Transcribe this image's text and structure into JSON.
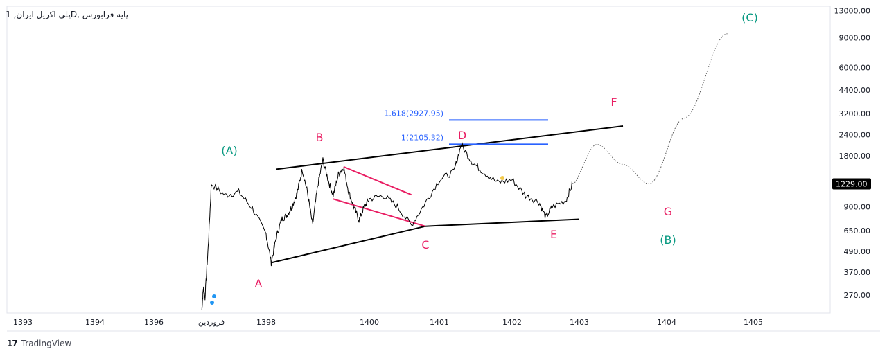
{
  "header": {
    "symbol_title": "پایه فرابورس ,Dپلی اکریل ایران, 1"
  },
  "footer": {
    "brand": "TradingView",
    "logo_icon": "tradingview-logo-icon"
  },
  "colors": {
    "price_line": "#000000",
    "wave_label_pink": "#e91e63",
    "wave_label_green": "#089981",
    "fib_line": "#2962ff",
    "trendline": "#000000",
    "pink_trendline": "#e91e63",
    "last_price_label_bg": "#000000",
    "marker_blue": "#2196f3",
    "marker_yellow": "#f2c94c"
  },
  "chart_data": {
    "type": "line",
    "scale": "log",
    "x_axis_ticks": [
      "1393",
      "1394",
      "1396",
      "فروردین",
      "1398",
      "1400",
      "1401",
      "1402",
      "1403",
      "1404",
      "1405"
    ],
    "y_axis_ticks": [
      13000,
      9000,
      6000,
      4400,
      3200,
      2400,
      1800,
      1229,
      900,
      650,
      490,
      370,
      270
    ],
    "y_axis_tick_labels": [
      "13000.00",
      "9000.00",
      "6000.00",
      "4400.00",
      "3200.00",
      "2400.00",
      "1800.00",
      "900.00",
      "650.00",
      "490.00",
      "370.00",
      "270.00"
    ],
    "last_price": 1229,
    "last_price_label": "1229.00",
    "price_series": [
      {
        "x": 1397.5,
        "y": 220
      },
      {
        "x": 1397.55,
        "y": 300
      },
      {
        "x": 1397.6,
        "y": 260
      },
      {
        "x": 1397.7,
        "y": 520
      },
      {
        "x": 1397.8,
        "y": 1230
      },
      {
        "x": 1397.85,
        "y": 1050
      },
      {
        "x": 1397.9,
        "y": 1100
      },
      {
        "x": 1397.95,
        "y": 880
      },
      {
        "x": 1398.0,
        "y": 620
      },
      {
        "x": 1398.1,
        "y": 420
      },
      {
        "x": 1398.2,
        "y": 600
      },
      {
        "x": 1398.3,
        "y": 760
      },
      {
        "x": 1398.4,
        "y": 800
      },
      {
        "x": 1398.5,
        "y": 900
      },
      {
        "x": 1398.6,
        "y": 1080
      },
      {
        "x": 1398.7,
        "y": 1500
      },
      {
        "x": 1398.8,
        "y": 1100
      },
      {
        "x": 1398.9,
        "y": 700
      },
      {
        "x": 1399.0,
        "y": 1200
      },
      {
        "x": 1399.1,
        "y": 1700
      },
      {
        "x": 1399.2,
        "y": 1300
      },
      {
        "x": 1399.3,
        "y": 1050
      },
      {
        "x": 1399.4,
        "y": 1400
      },
      {
        "x": 1399.5,
        "y": 1550
      },
      {
        "x": 1399.6,
        "y": 1100
      },
      {
        "x": 1399.7,
        "y": 900
      },
      {
        "x": 1399.8,
        "y": 750
      },
      {
        "x": 1399.9,
        "y": 900
      },
      {
        "x": 1400.0,
        "y": 1000
      },
      {
        "x": 1400.2,
        "y": 1050
      },
      {
        "x": 1400.4,
        "y": 900
      },
      {
        "x": 1400.6,
        "y": 700
      },
      {
        "x": 1400.8,
        "y": 950
      },
      {
        "x": 1401.0,
        "y": 1300
      },
      {
        "x": 1401.2,
        "y": 1450
      },
      {
        "x": 1401.3,
        "y": 2100
      },
      {
        "x": 1401.45,
        "y": 1650
      },
      {
        "x": 1401.6,
        "y": 1450
      },
      {
        "x": 1401.8,
        "y": 1250
      },
      {
        "x": 1402.0,
        "y": 1300
      },
      {
        "x": 1402.2,
        "y": 1050
      },
      {
        "x": 1402.4,
        "y": 960
      },
      {
        "x": 1402.5,
        "y": 780
      },
      {
        "x": 1402.6,
        "y": 900
      },
      {
        "x": 1402.8,
        "y": 980
      },
      {
        "x": 1402.9,
        "y": 1229
      }
    ],
    "projection": [
      {
        "x": 1402.9,
        "y": 1229
      },
      {
        "x": 1403.2,
        "y": 2100
      },
      {
        "x": 1403.5,
        "y": 1600
      },
      {
        "x": 1403.8,
        "y": 1229
      },
      {
        "x": 1404.2,
        "y": 3000
      },
      {
        "x": 1404.7,
        "y": 9500
      }
    ],
    "fib_levels": [
      {
        "label": "1.618(2927.95)",
        "value": 2927.95
      },
      {
        "label": "1(2105.32)",
        "value": 2105.32
      }
    ],
    "wave_labels": [
      {
        "text": "(A)",
        "color_key": "wave_label_green"
      },
      {
        "text": "A",
        "color_key": "wave_label_pink"
      },
      {
        "text": "B",
        "color_key": "wave_label_pink"
      },
      {
        "text": "C",
        "color_key": "wave_label_pink"
      },
      {
        "text": "D",
        "color_key": "wave_label_pink"
      },
      {
        "text": "E",
        "color_key": "wave_label_pink"
      },
      {
        "text": "F",
        "color_key": "wave_label_pink"
      },
      {
        "text": "G",
        "color_key": "wave_label_pink"
      },
      {
        "text": "(B)",
        "color_key": "wave_label_green"
      },
      {
        "text": "(C)",
        "color_key": "wave_label_green"
      }
    ]
  }
}
